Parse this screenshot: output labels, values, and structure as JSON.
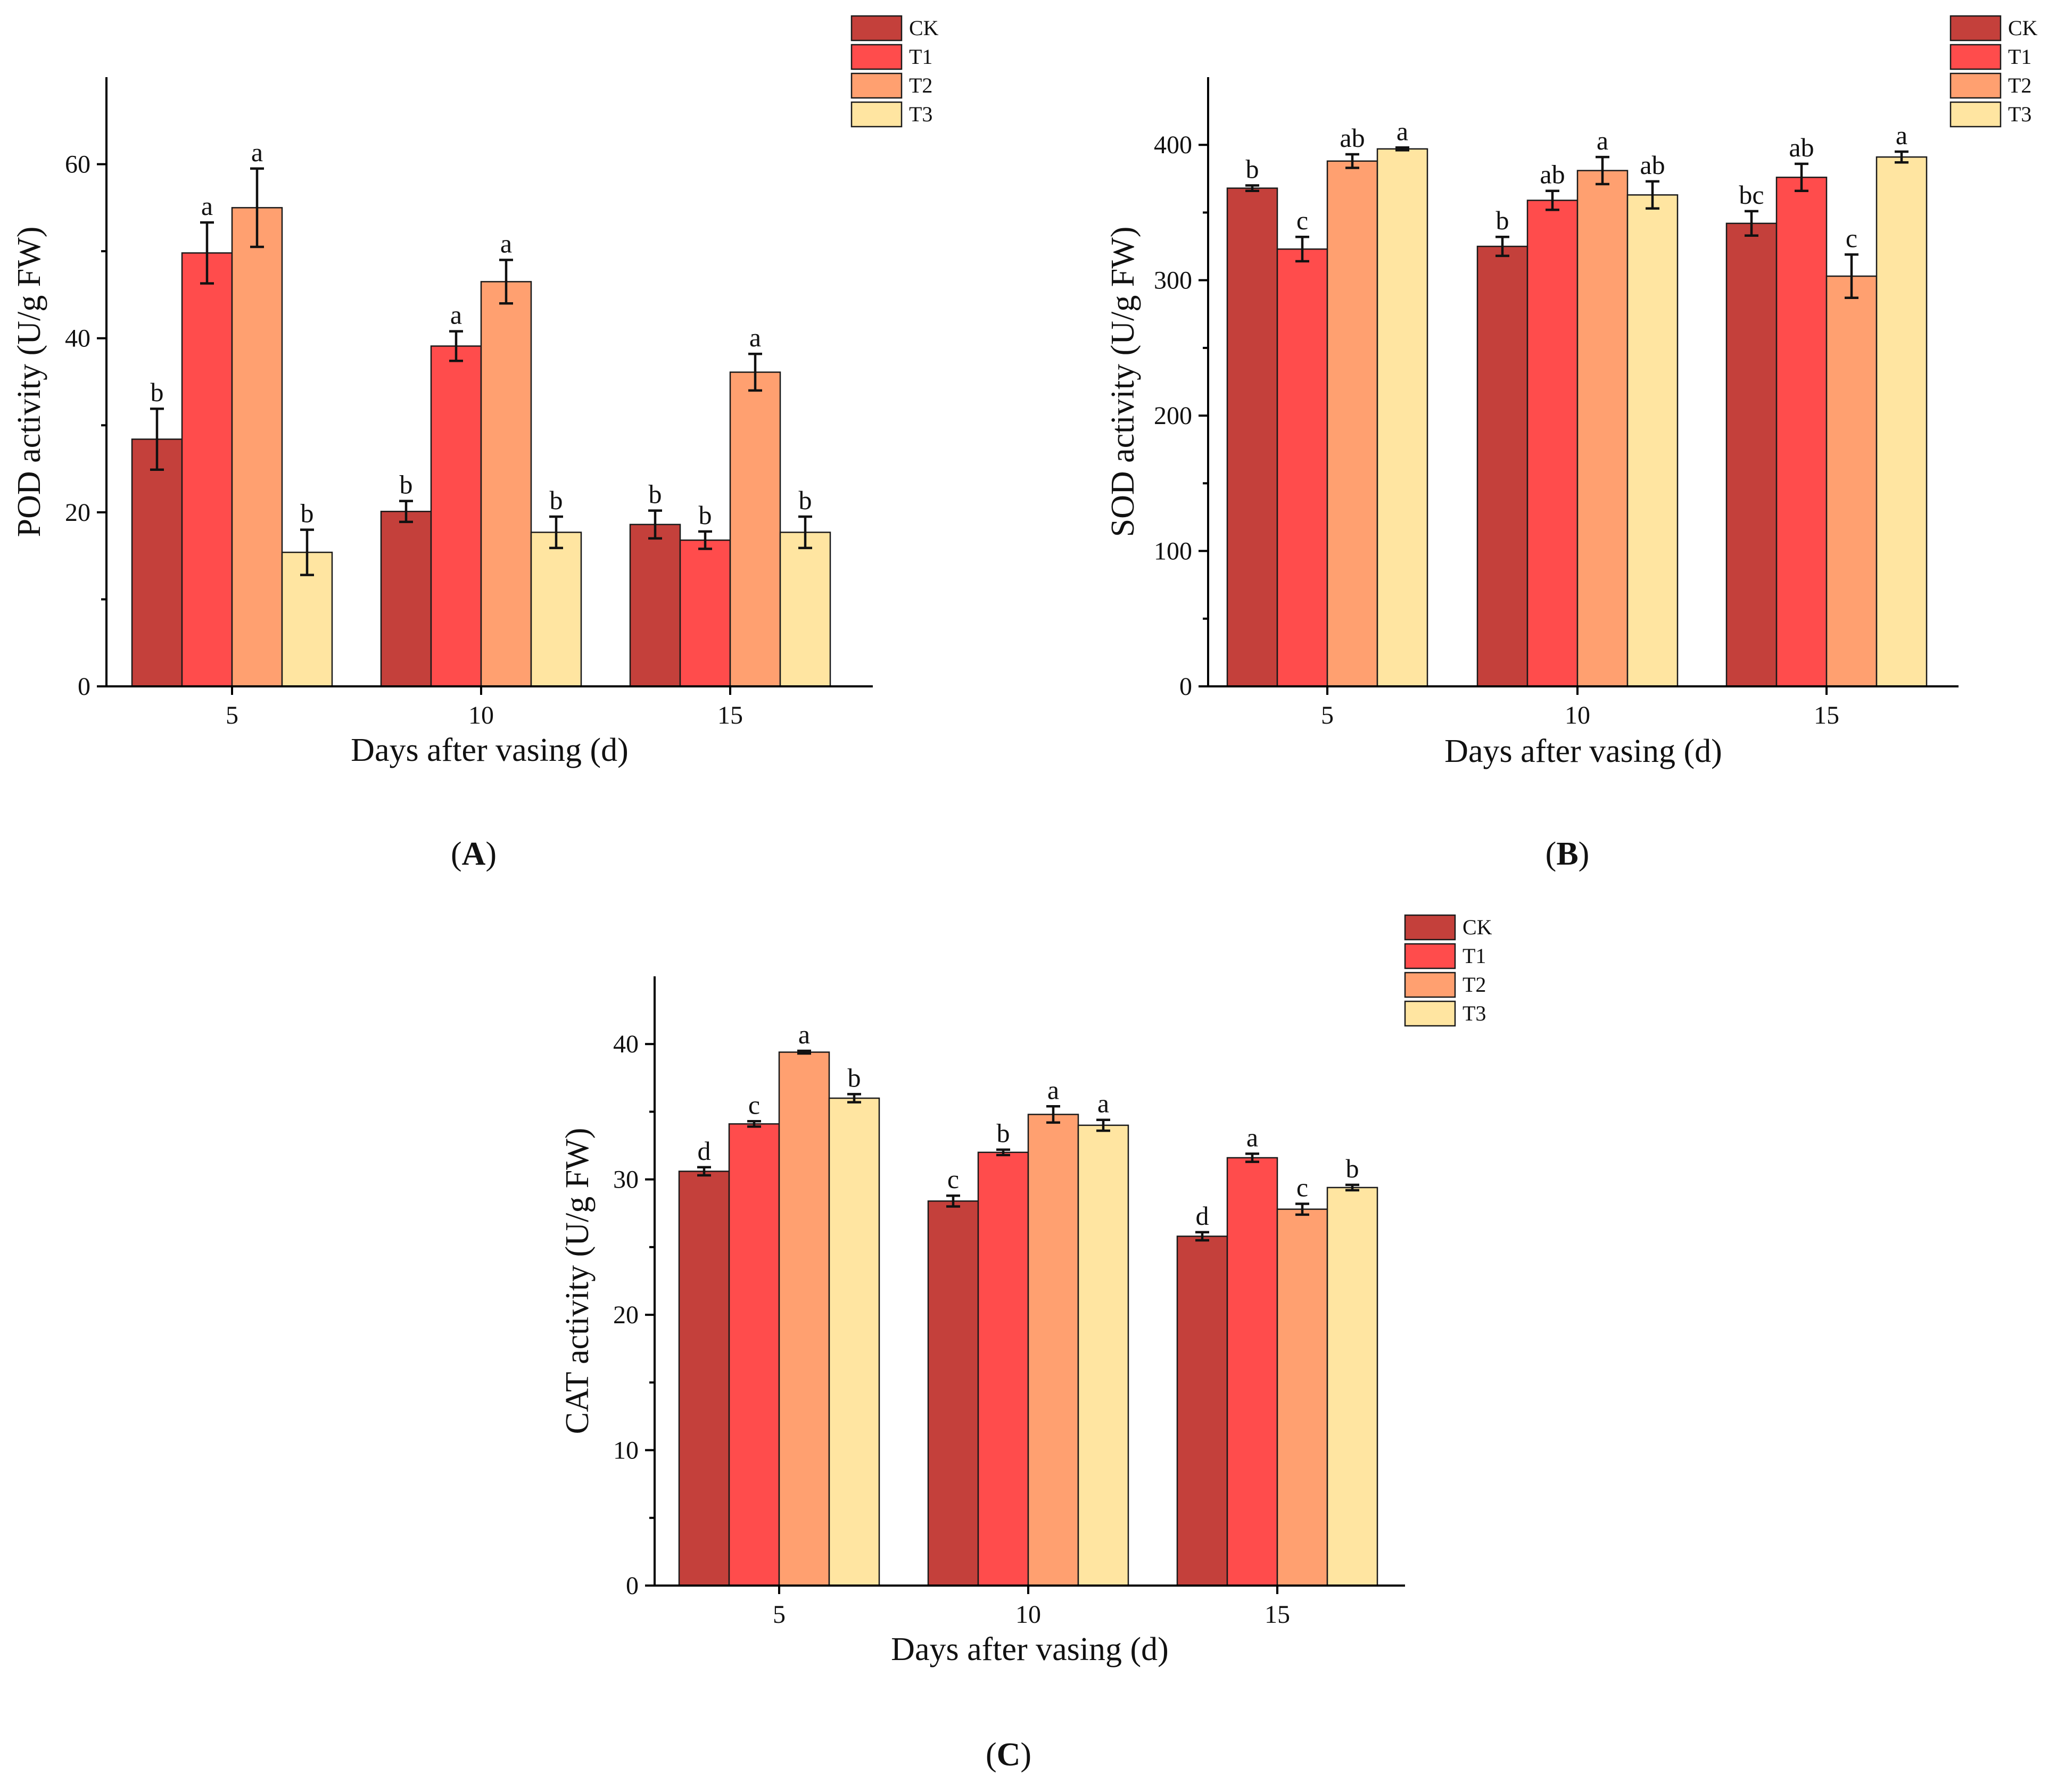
{
  "colors": {
    "CK": "#c4403b",
    "T1": "#ff4c4c",
    "T2": "#ffa070",
    "T3": "#ffe5a1"
  },
  "chart_data": [
    {
      "type": "bar",
      "panel_label": "(A)",
      "panel_letter": "A",
      "categories": [
        "5",
        "10",
        "15"
      ],
      "xlabel": "Days after vasing (d)",
      "ylabel": "POD activity (U/g FW)",
      "ylim": [
        0,
        70
      ],
      "yticks": [
        0,
        20,
        40,
        60
      ],
      "legend_position": "top-right",
      "series": [
        {
          "name": "CK",
          "color": "#c4403b",
          "values": [
            28.4,
            20.1,
            18.6
          ],
          "errors": [
            3.5,
            1.2,
            1.6
          ],
          "labels": [
            "b",
            "b",
            "b"
          ]
        },
        {
          "name": "T1",
          "color": "#ff4c4c",
          "values": [
            49.8,
            39.1,
            16.8
          ],
          "errors": [
            3.5,
            1.7,
            1.0
          ],
          "labels": [
            "a",
            "a",
            "b"
          ]
        },
        {
          "name": "T2",
          "color": "#ffa070",
          "values": [
            55.0,
            46.5,
            36.1
          ],
          "errors": [
            4.5,
            2.5,
            2.1
          ],
          "labels": [
            "a",
            "a",
            "a"
          ]
        },
        {
          "name": "T3",
          "color": "#ffe5a1",
          "values": [
            15.4,
            17.7,
            17.7
          ],
          "errors": [
            2.6,
            1.8,
            1.8
          ],
          "labels": [
            "b",
            "b",
            "b"
          ]
        }
      ]
    },
    {
      "type": "bar",
      "panel_label": "(B)",
      "panel_letter": "B",
      "categories": [
        "5",
        "10",
        "15"
      ],
      "xlabel": "Days after vasing (d)",
      "ylabel": "SOD activity (U/g FW)",
      "ylim": [
        0,
        450
      ],
      "yticks": [
        0,
        100,
        200,
        300,
        400
      ],
      "legend_position": "top-right",
      "series": [
        {
          "name": "CK",
          "color": "#c4403b",
          "values": [
            368,
            325,
            342
          ],
          "errors": [
            2,
            7,
            9
          ],
          "labels": [
            "b",
            "b",
            "bc"
          ]
        },
        {
          "name": "T1",
          "color": "#ff4c4c",
          "values": [
            323,
            359,
            376
          ],
          "errors": [
            9,
            7,
            10
          ],
          "labels": [
            "c",
            "ab",
            "ab"
          ]
        },
        {
          "name": "T2",
          "color": "#ffa070",
          "values": [
            388,
            381,
            303
          ],
          "errors": [
            5,
            10,
            16
          ],
          "labels": [
            "ab",
            "a",
            "c"
          ]
        },
        {
          "name": "T3",
          "color": "#ffe5a1",
          "values": [
            397,
            363,
            391
          ],
          "errors": [
            1,
            10,
            4
          ],
          "labels": [
            "a",
            "ab",
            "a"
          ]
        }
      ]
    },
    {
      "type": "bar",
      "panel_label": "(C)",
      "panel_letter": "C",
      "categories": [
        "5",
        "10",
        "15"
      ],
      "xlabel": "Days after vasing (d)",
      "ylabel": "CAT activity (U/g FW)",
      "ylim": [
        0,
        45
      ],
      "yticks": [
        0,
        10,
        20,
        30,
        40
      ],
      "legend_position": "top-right",
      "series": [
        {
          "name": "CK",
          "color": "#c4403b",
          "values": [
            30.6,
            28.4,
            25.8
          ],
          "errors": [
            0.3,
            0.4,
            0.3
          ],
          "labels": [
            "d",
            "c",
            "d"
          ]
        },
        {
          "name": "T1",
          "color": "#ff4c4c",
          "values": [
            34.1,
            32.0,
            31.6
          ],
          "errors": [
            0.2,
            0.2,
            0.3
          ],
          "labels": [
            "c",
            "b",
            "a"
          ]
        },
        {
          "name": "T2",
          "color": "#ffa070",
          "values": [
            39.4,
            34.8,
            27.8
          ],
          "errors": [
            0.1,
            0.6,
            0.4
          ],
          "labels": [
            "a",
            "a",
            "c"
          ]
        },
        {
          "name": "T3",
          "color": "#ffe5a1",
          "values": [
            36.0,
            34.0,
            29.4
          ],
          "errors": [
            0.3,
            0.4,
            0.2
          ],
          "labels": [
            "b",
            "a",
            "b"
          ]
        }
      ]
    }
  ]
}
